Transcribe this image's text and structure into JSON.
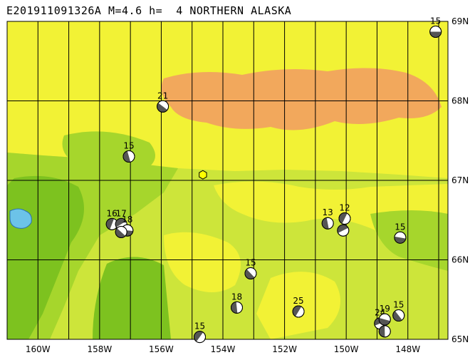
{
  "header": {
    "title": "E201911091326A M=4.6 h=  4 NORTHERN ALASKA"
  },
  "map": {
    "lon_min": -161,
    "lon_max": -146.7,
    "lat_min": 65,
    "lat_max": 69,
    "grid_lons": [
      -160,
      -159,
      -158,
      -157,
      -156,
      -155,
      -154,
      -153,
      -152,
      -151,
      -150,
      -149,
      -148,
      -147
    ],
    "grid_lats": [
      66,
      67,
      68
    ],
    "lon_labels": [
      {
        "lon": -160,
        "text": "160W"
      },
      {
        "lon": -158,
        "text": "158W"
      },
      {
        "lon": -156,
        "text": "156W"
      },
      {
        "lon": -154,
        "text": "154W"
      },
      {
        "lon": -152,
        "text": "152W"
      },
      {
        "lon": -150,
        "text": "150W"
      },
      {
        "lon": -148,
        "text": "148W"
      }
    ],
    "lat_labels": [
      {
        "lat": 69,
        "text": "69N"
      },
      {
        "lat": 68,
        "text": "68N"
      },
      {
        "lat": 67,
        "text": "67N"
      },
      {
        "lat": 66,
        "text": "66N"
      },
      {
        "lat": 65,
        "text": "65N"
      }
    ],
    "colors": {
      "deep_green": "#7dc21f",
      "mid_green": "#a6d62c",
      "light_green": "#cde53a",
      "yellow": "#f2f235",
      "orange": "#f2a85c",
      "lake": "#6cc3e8",
      "epicenter": "#ffff00"
    },
    "epicenter": {
      "lon": -154.65,
      "lat": 67.07
    }
  },
  "mechanisms": [
    {
      "lon": -147.1,
      "lat": 68.87,
      "label": "15"
    },
    {
      "lon": -155.95,
      "lat": 67.93,
      "label": "21"
    },
    {
      "lon": -157.05,
      "lat": 67.3,
      "label": "15"
    },
    {
      "lon": -157.6,
      "lat": 66.45,
      "label": "16"
    },
    {
      "lon": -157.3,
      "lat": 66.45,
      "label": "17"
    },
    {
      "lon": -157.1,
      "lat": 66.37,
      "label": "18"
    },
    {
      "lon": -157.3,
      "lat": 66.35,
      "label": ""
    },
    {
      "lon": -150.6,
      "lat": 66.46,
      "label": "13"
    },
    {
      "lon": -150.05,
      "lat": 66.52,
      "label": "12"
    },
    {
      "lon": -150.1,
      "lat": 66.37,
      "label": ""
    },
    {
      "lon": -148.25,
      "lat": 66.28,
      "label": "15"
    },
    {
      "lon": -153.1,
      "lat": 65.83,
      "label": "15"
    },
    {
      "lon": -153.55,
      "lat": 65.4,
      "label": "18"
    },
    {
      "lon": -151.55,
      "lat": 65.35,
      "label": "25"
    },
    {
      "lon": -148.9,
      "lat": 65.2,
      "label": "24"
    },
    {
      "lon": -148.75,
      "lat": 65.25,
      "label": "19"
    },
    {
      "lon": -148.3,
      "lat": 65.3,
      "label": "15"
    },
    {
      "lon": -148.75,
      "lat": 65.1,
      "label": ""
    },
    {
      "lon": -154.75,
      "lat": 65.03,
      "label": "15"
    }
  ]
}
